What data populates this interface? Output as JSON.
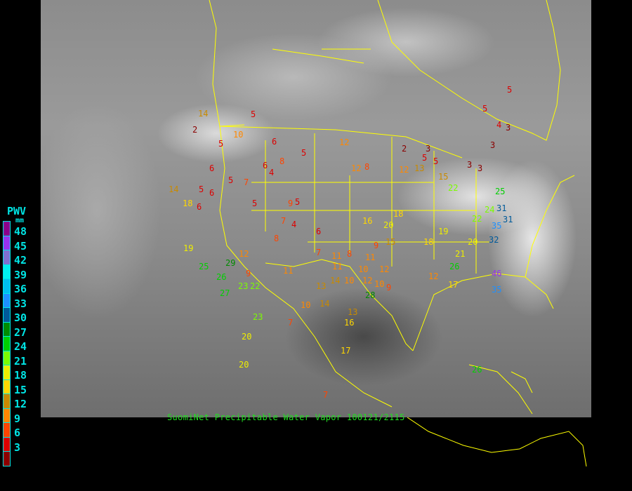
{
  "caption": "SuomiNet Precipitable Water Vapor 100121/2115",
  "legend": {
    "title": "PWV",
    "unit": "mm",
    "labels": [
      "48",
      "45",
      "42",
      "39",
      "36",
      "33",
      "30",
      "27",
      "24",
      "21",
      "18",
      "15",
      "12",
      "9",
      "6",
      "3"
    ],
    "colors": [
      "#8b008b",
      "#9932ee",
      "#8070d0",
      "#00f0f0",
      "#00bfef",
      "#1e90ff",
      "#005a9a",
      "#008b00",
      "#00d000",
      "#7cfc00",
      "#eeee00",
      "#ffd700",
      "#c88a00",
      "#ff8800",
      "#ff4500",
      "#dd0000",
      "#8b0000"
    ]
  },
  "map": {
    "background": "infrared satellite imagery",
    "boundary_color": "#ffff00",
    "stations": [
      5,
      2,
      14,
      5,
      10,
      6,
      5,
      12,
      8,
      12,
      3,
      2,
      5,
      5,
      3,
      3,
      4,
      3,
      5,
      3,
      5,
      6,
      6,
      5,
      7,
      6,
      4,
      8,
      5,
      12,
      13,
      15,
      22,
      25,
      31,
      35,
      31,
      32,
      46,
      35,
      14,
      18,
      5,
      6,
      9,
      5,
      4,
      6,
      7,
      8,
      15,
      18,
      10,
      9,
      8,
      7,
      16,
      20,
      12,
      12,
      11,
      10,
      9,
      17,
      19,
      25,
      26,
      29,
      27,
      22,
      23,
      12,
      11,
      13,
      14,
      11,
      10,
      11,
      12,
      10,
      14,
      13,
      16,
      17,
      20,
      23,
      20,
      28,
      26,
      26,
      22,
      24,
      20,
      19,
      18,
      21,
      9,
      7,
      7
    ]
  }
}
